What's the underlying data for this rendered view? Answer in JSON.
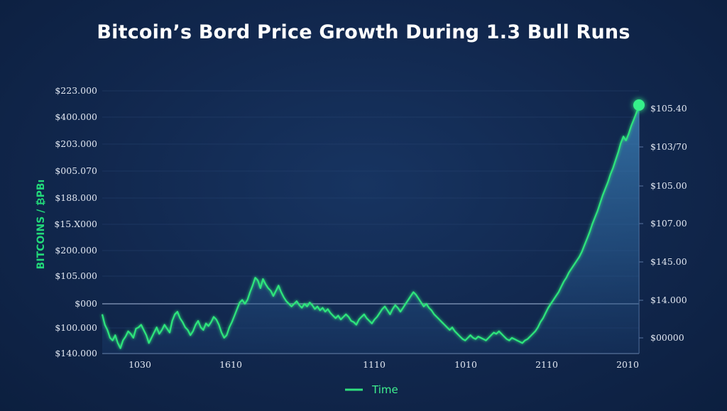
{
  "chart_data": {
    "type": "area",
    "title": "Bitcoin’s Bord Price Growth During 1.3 Bull Runs",
    "ylabel": "BITCOINS / ₿PBı",
    "y_ticks_left": [
      "$223.000",
      "$400.000",
      "$203.000",
      "$005.070",
      "$188.000",
      "$15.X000",
      "$200.000",
      "$105.000",
      "$000",
      "$100.000",
      "$140.000"
    ],
    "y_ticks_right": [
      "$105.40",
      "$103/70",
      "$105.00",
      "$107.00",
      "$145.00",
      "$14.000",
      "$00000"
    ],
    "x_ticks": [
      "1030",
      "1610",
      "1110",
      "1010",
      "2110",
      "2010"
    ],
    "legend": [
      {
        "label": "Time",
        "color": "#2fe07e"
      }
    ],
    "series": [
      {
        "color": "#2ee57c",
        "points": [
          [
            0,
            30
          ],
          [
            2,
            22
          ],
          [
            4,
            18
          ],
          [
            6,
            12
          ],
          [
            8,
            10
          ],
          [
            10,
            14
          ],
          [
            12,
            8
          ],
          [
            14,
            4
          ],
          [
            16,
            10
          ],
          [
            18,
            13
          ],
          [
            20,
            17
          ],
          [
            22,
            15
          ],
          [
            24,
            12
          ],
          [
            26,
            19
          ],
          [
            28,
            20
          ],
          [
            30,
            22
          ],
          [
            32,
            18
          ],
          [
            34,
            14
          ],
          [
            36,
            8
          ],
          [
            38,
            12
          ],
          [
            40,
            16
          ],
          [
            42,
            20
          ],
          [
            44,
            15
          ],
          [
            46,
            18
          ],
          [
            48,
            22
          ],
          [
            50,
            19
          ],
          [
            52,
            16
          ],
          [
            54,
            25
          ],
          [
            56,
            30
          ],
          [
            58,
            32
          ],
          [
            60,
            27
          ],
          [
            62,
            24
          ],
          [
            64,
            20
          ],
          [
            66,
            18
          ],
          [
            68,
            14
          ],
          [
            70,
            17
          ],
          [
            72,
            22
          ],
          [
            74,
            25
          ],
          [
            76,
            20
          ],
          [
            78,
            18
          ],
          [
            80,
            23
          ],
          [
            82,
            21
          ],
          [
            84,
            24
          ],
          [
            86,
            28
          ],
          [
            88,
            26
          ],
          [
            90,
            22
          ],
          [
            92,
            16
          ],
          [
            94,
            12
          ],
          [
            96,
            14
          ],
          [
            98,
            20
          ],
          [
            100,
            24
          ],
          [
            102,
            29
          ],
          [
            104,
            34
          ],
          [
            106,
            39
          ],
          [
            108,
            41
          ],
          [
            110,
            38
          ],
          [
            112,
            41
          ],
          [
            114,
            47
          ],
          [
            116,
            52
          ],
          [
            118,
            58
          ],
          [
            120,
            56
          ],
          [
            122,
            50
          ],
          [
            124,
            57
          ],
          [
            126,
            53
          ],
          [
            128,
            50
          ],
          [
            130,
            48
          ],
          [
            132,
            44
          ],
          [
            134,
            48
          ],
          [
            136,
            52
          ],
          [
            138,
            47
          ],
          [
            140,
            43
          ],
          [
            142,
            40
          ],
          [
            144,
            38
          ],
          [
            146,
            36
          ],
          [
            148,
            38
          ],
          [
            150,
            40
          ],
          [
            152,
            37
          ],
          [
            154,
            35
          ],
          [
            156,
            38
          ],
          [
            158,
            36
          ],
          [
            160,
            39
          ],
          [
            162,
            37
          ],
          [
            164,
            34
          ],
          [
            166,
            36
          ],
          [
            168,
            33
          ],
          [
            170,
            35
          ],
          [
            172,
            32
          ],
          [
            174,
            34
          ],
          [
            176,
            31
          ],
          [
            178,
            29
          ],
          [
            180,
            27
          ],
          [
            182,
            29
          ],
          [
            184,
            26
          ],
          [
            186,
            28
          ],
          [
            188,
            30
          ],
          [
            190,
            28
          ],
          [
            192,
            25
          ],
          [
            194,
            24
          ],
          [
            196,
            22
          ],
          [
            198,
            26
          ],
          [
            200,
            28
          ],
          [
            202,
            30
          ],
          [
            204,
            27
          ],
          [
            206,
            25
          ],
          [
            208,
            23
          ],
          [
            210,
            26
          ],
          [
            212,
            28
          ],
          [
            214,
            31
          ],
          [
            216,
            34
          ],
          [
            218,
            36
          ],
          [
            220,
            33
          ],
          [
            222,
            30
          ],
          [
            224,
            34
          ],
          [
            226,
            37
          ],
          [
            228,
            35
          ],
          [
            230,
            32
          ],
          [
            232,
            35
          ],
          [
            234,
            38
          ],
          [
            236,
            41
          ],
          [
            238,
            44
          ],
          [
            240,
            47
          ],
          [
            242,
            45
          ],
          [
            244,
            42
          ],
          [
            246,
            39
          ],
          [
            248,
            36
          ],
          [
            250,
            38
          ],
          [
            252,
            35
          ],
          [
            254,
            33
          ],
          [
            256,
            30
          ],
          [
            258,
            28
          ],
          [
            260,
            26
          ],
          [
            262,
            24
          ],
          [
            264,
            22
          ],
          [
            266,
            20
          ],
          [
            268,
            18
          ],
          [
            270,
            20
          ],
          [
            272,
            17
          ],
          [
            274,
            15
          ],
          [
            276,
            13
          ],
          [
            278,
            11
          ],
          [
            280,
            10
          ],
          [
            282,
            12
          ],
          [
            284,
            14
          ],
          [
            286,
            12
          ],
          [
            288,
            11
          ],
          [
            290,
            13
          ],
          [
            292,
            12
          ],
          [
            294,
            11
          ],
          [
            296,
            10
          ],
          [
            298,
            12
          ],
          [
            300,
            14
          ],
          [
            302,
            16
          ],
          [
            304,
            15
          ],
          [
            306,
            17
          ],
          [
            308,
            15
          ],
          [
            310,
            13
          ],
          [
            312,
            11
          ],
          [
            314,
            10
          ],
          [
            316,
            12
          ],
          [
            318,
            11
          ],
          [
            320,
            10
          ],
          [
            322,
            9
          ],
          [
            324,
            8
          ],
          [
            326,
            10
          ],
          [
            328,
            11
          ],
          [
            330,
            13
          ],
          [
            332,
            15
          ],
          [
            334,
            17
          ],
          [
            336,
            20
          ],
          [
            338,
            24
          ],
          [
            340,
            27
          ],
          [
            342,
            31
          ],
          [
            344,
            35
          ],
          [
            346,
            38
          ],
          [
            348,
            41
          ],
          [
            350,
            44
          ],
          [
            352,
            47
          ],
          [
            354,
            51
          ],
          [
            356,
            55
          ],
          [
            358,
            58
          ],
          [
            360,
            62
          ],
          [
            362,
            65
          ],
          [
            364,
            68
          ],
          [
            366,
            71
          ],
          [
            368,
            74
          ],
          [
            370,
            78
          ],
          [
            372,
            83
          ],
          [
            374,
            88
          ],
          [
            376,
            93
          ],
          [
            378,
            99
          ],
          [
            380,
            104
          ],
          [
            382,
            109
          ],
          [
            384,
            115
          ],
          [
            386,
            121
          ],
          [
            388,
            126
          ],
          [
            390,
            131
          ],
          [
            392,
            137
          ],
          [
            394,
            142
          ],
          [
            396,
            148
          ],
          [
            398,
            154
          ],
          [
            400,
            161
          ],
          [
            402,
            166
          ],
          [
            404,
            163
          ],
          [
            406,
            168
          ],
          [
            408,
            174
          ],
          [
            410,
            179
          ],
          [
            412,
            184
          ],
          [
            414,
            189
          ]
        ]
      }
    ]
  }
}
